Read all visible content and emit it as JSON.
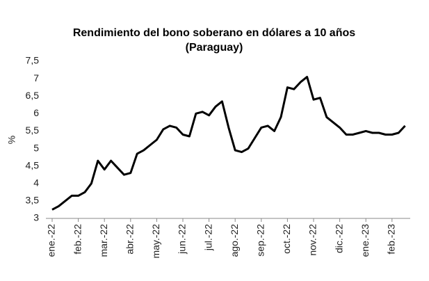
{
  "chart_data": {
    "type": "line",
    "title": "Rendimiento del bono soberano en dólares a 10 años",
    "subtitle": "(Paraguay)",
    "y_label": "%",
    "categories": [
      "ene.-22",
      null,
      null,
      null,
      "feb.-22",
      null,
      null,
      null,
      "mar.-22",
      null,
      null,
      null,
      "abr.-22",
      null,
      null,
      null,
      "may.-22",
      null,
      null,
      null,
      "jun.-22",
      null,
      null,
      null,
      "jul.-22",
      null,
      null,
      null,
      "ago.-22",
      null,
      null,
      null,
      "sep.-22",
      null,
      null,
      null,
      "oct.-22",
      null,
      null,
      null,
      "nov.-22",
      null,
      null,
      null,
      "dic.-22",
      null,
      null,
      null,
      "ene.-23",
      null,
      null,
      null,
      "feb.-23",
      null,
      null
    ],
    "series": [
      {
        "name": "Rendimiento",
        "color": "#000000",
        "values": [
          3.25,
          3.35,
          3.5,
          3.65,
          3.65,
          3.75,
          4.0,
          4.65,
          4.4,
          4.65,
          4.45,
          4.25,
          4.3,
          4.85,
          4.95,
          5.1,
          5.25,
          5.55,
          5.65,
          5.6,
          5.4,
          5.35,
          6.0,
          6.05,
          5.95,
          6.2,
          6.35,
          5.6,
          4.95,
          4.9,
          5.0,
          5.3,
          5.6,
          5.65,
          5.5,
          5.9,
          6.75,
          6.7,
          6.9,
          7.05,
          6.4,
          6.45,
          5.9,
          5.75,
          5.6,
          5.4,
          5.4,
          5.45,
          5.5,
          5.45,
          5.45,
          5.4,
          5.4,
          5.45,
          5.65
        ]
      }
    ],
    "ylim": [
      3,
      7.5
    ],
    "yticks": [
      3,
      {
        "value": 3.5,
        "label": "3,5"
      },
      4,
      {
        "value": 4.5,
        "label": "4,5"
      },
      5,
      {
        "value": 5.5,
        "label": "5,5"
      },
      6,
      {
        "value": 6.5,
        "label": "6,5"
      },
      7,
      {
        "value": 7.5,
        "label": "7,5"
      }
    ]
  }
}
